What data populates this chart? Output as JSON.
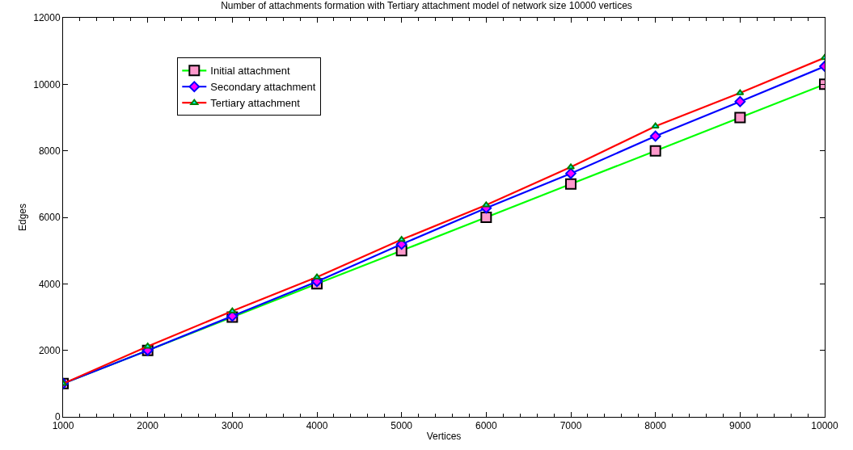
{
  "chart_data": {
    "type": "line",
    "title": "Number of attachments formation with Tertiary attachment model of network size 10000 vertices",
    "xlabel": "Vertices",
    "ylabel": "Edges",
    "x": [
      1000,
      2000,
      3000,
      4000,
      5000,
      6000,
      7000,
      8000,
      9000,
      10000
    ],
    "xlim": [
      1000,
      10000
    ],
    "xticks": [
      1000,
      2000,
      3000,
      4000,
      5000,
      6000,
      7000,
      8000,
      9000,
      10000
    ],
    "ylim": [
      0,
      12000
    ],
    "yticks": [
      0,
      2000,
      4000,
      6000,
      8000,
      10000,
      12000
    ],
    "legend": "top left",
    "series": [
      {
        "name": "Initial attachment",
        "color": "#00ff00",
        "marker": "square",
        "values": [
          1000,
          2000,
          3000,
          4000,
          5000,
          6000,
          7000,
          8000,
          9000,
          10000
        ]
      },
      {
        "name": "Secondary attachment",
        "color": "#0000ff",
        "marker": "diamond",
        "values": [
          1000,
          2000,
          3030,
          4070,
          5190,
          6280,
          7320,
          8440,
          9480,
          10540
        ]
      },
      {
        "name": "Tertiary attachment",
        "color": "#ff0000",
        "marker": "triangle",
        "values": [
          1000,
          2120,
          3180,
          4200,
          5330,
          6370,
          7510,
          8740,
          9740,
          10800
        ]
      }
    ]
  }
}
